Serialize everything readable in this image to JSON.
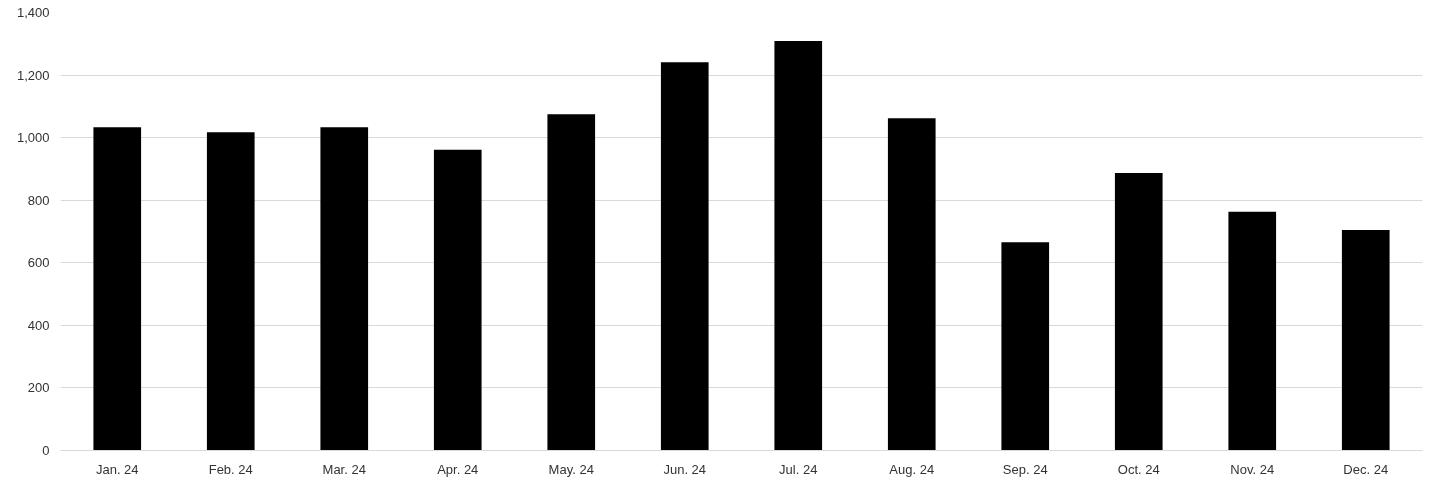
{
  "chart_data": {
    "type": "bar",
    "categories": [
      "Jan. 24",
      "Feb. 24",
      "Mar. 24",
      "Apr. 24",
      "May. 24",
      "Jun. 24",
      "Jul. 24",
      "Aug. 24",
      "Sep. 24",
      "Oct. 24",
      "Nov. 24",
      "Dec. 24"
    ],
    "values": [
      1033,
      1017,
      1033,
      961,
      1075,
      1241,
      1309,
      1062,
      666,
      887,
      763,
      705
    ],
    "color": "#000000",
    "ylim": [
      0,
      1400
    ],
    "yticks": [
      0,
      {
        "value": 200,
        "label": "200"
      },
      {
        "value": 400,
        "label": "400"
      },
      {
        "value": 600,
        "label": "600"
      },
      {
        "value": 800,
        "label": "800"
      },
      {
        "value": 1000,
        "label": "1,000"
      },
      {
        "value": 1200,
        "label": "1,200"
      },
      {
        "value": 1400,
        "label": "1,400"
      }
    ],
    "grid": "y"
  }
}
